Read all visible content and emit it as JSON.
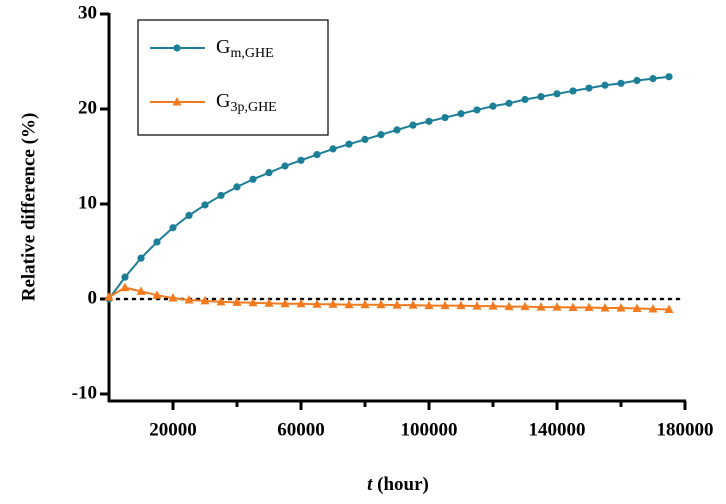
{
  "chart_data": {
    "type": "line",
    "ylabel": "Relative difference (%)",
    "xlabel_var": "t",
    "xlabel_unit": "(hour)",
    "xlim": [
      0,
      180000
    ],
    "xticks": [
      20000,
      60000,
      100000,
      140000,
      180000
    ],
    "xminorticks": [
      40000,
      80000,
      120000,
      160000
    ],
    "ylim": [
      -10,
      30
    ],
    "yticks": [
      -10,
      0,
      10,
      20,
      30
    ],
    "hline": 0,
    "x": [
      0,
      5000,
      10000,
      15000,
      20000,
      25000,
      30000,
      35000,
      40000,
      45000,
      50000,
      55000,
      60000,
      65000,
      70000,
      75000,
      80000,
      85000,
      90000,
      95000,
      100000,
      105000,
      110000,
      115000,
      120000,
      125000,
      130000,
      135000,
      140000,
      145000,
      150000,
      155000,
      160000,
      165000,
      170000,
      175000
    ],
    "series": [
      {
        "name": "G",
        "subscript": "m,GHE",
        "color": "#1d7e98",
        "marker": "circle",
        "values": [
          0,
          2.3,
          4.3,
          6.0,
          7.5,
          8.8,
          9.9,
          10.9,
          11.8,
          12.6,
          13.3,
          14.0,
          14.6,
          15.2,
          15.8,
          16.3,
          16.8,
          17.3,
          17.8,
          18.3,
          18.7,
          19.1,
          19.5,
          19.9,
          20.3,
          20.6,
          21.0,
          21.3,
          21.6,
          21.9,
          22.2,
          22.5,
          22.7,
          23.0,
          23.2,
          23.4
        ]
      },
      {
        "name": "G",
        "subscript": "3p,GHE",
        "color": "#f47a1f",
        "marker": "triangle",
        "values": [
          0.2,
          1.2,
          0.8,
          0.4,
          0.1,
          -0.1,
          -0.2,
          -0.3,
          -0.35,
          -0.4,
          -0.45,
          -0.5,
          -0.5,
          -0.55,
          -0.55,
          -0.6,
          -0.6,
          -0.6,
          -0.65,
          -0.65,
          -0.7,
          -0.7,
          -0.7,
          -0.75,
          -0.75,
          -0.8,
          -0.8,
          -0.85,
          -0.85,
          -0.9,
          -0.9,
          -0.95,
          -0.95,
          -1.0,
          -1.05,
          -1.1
        ]
      }
    ]
  }
}
